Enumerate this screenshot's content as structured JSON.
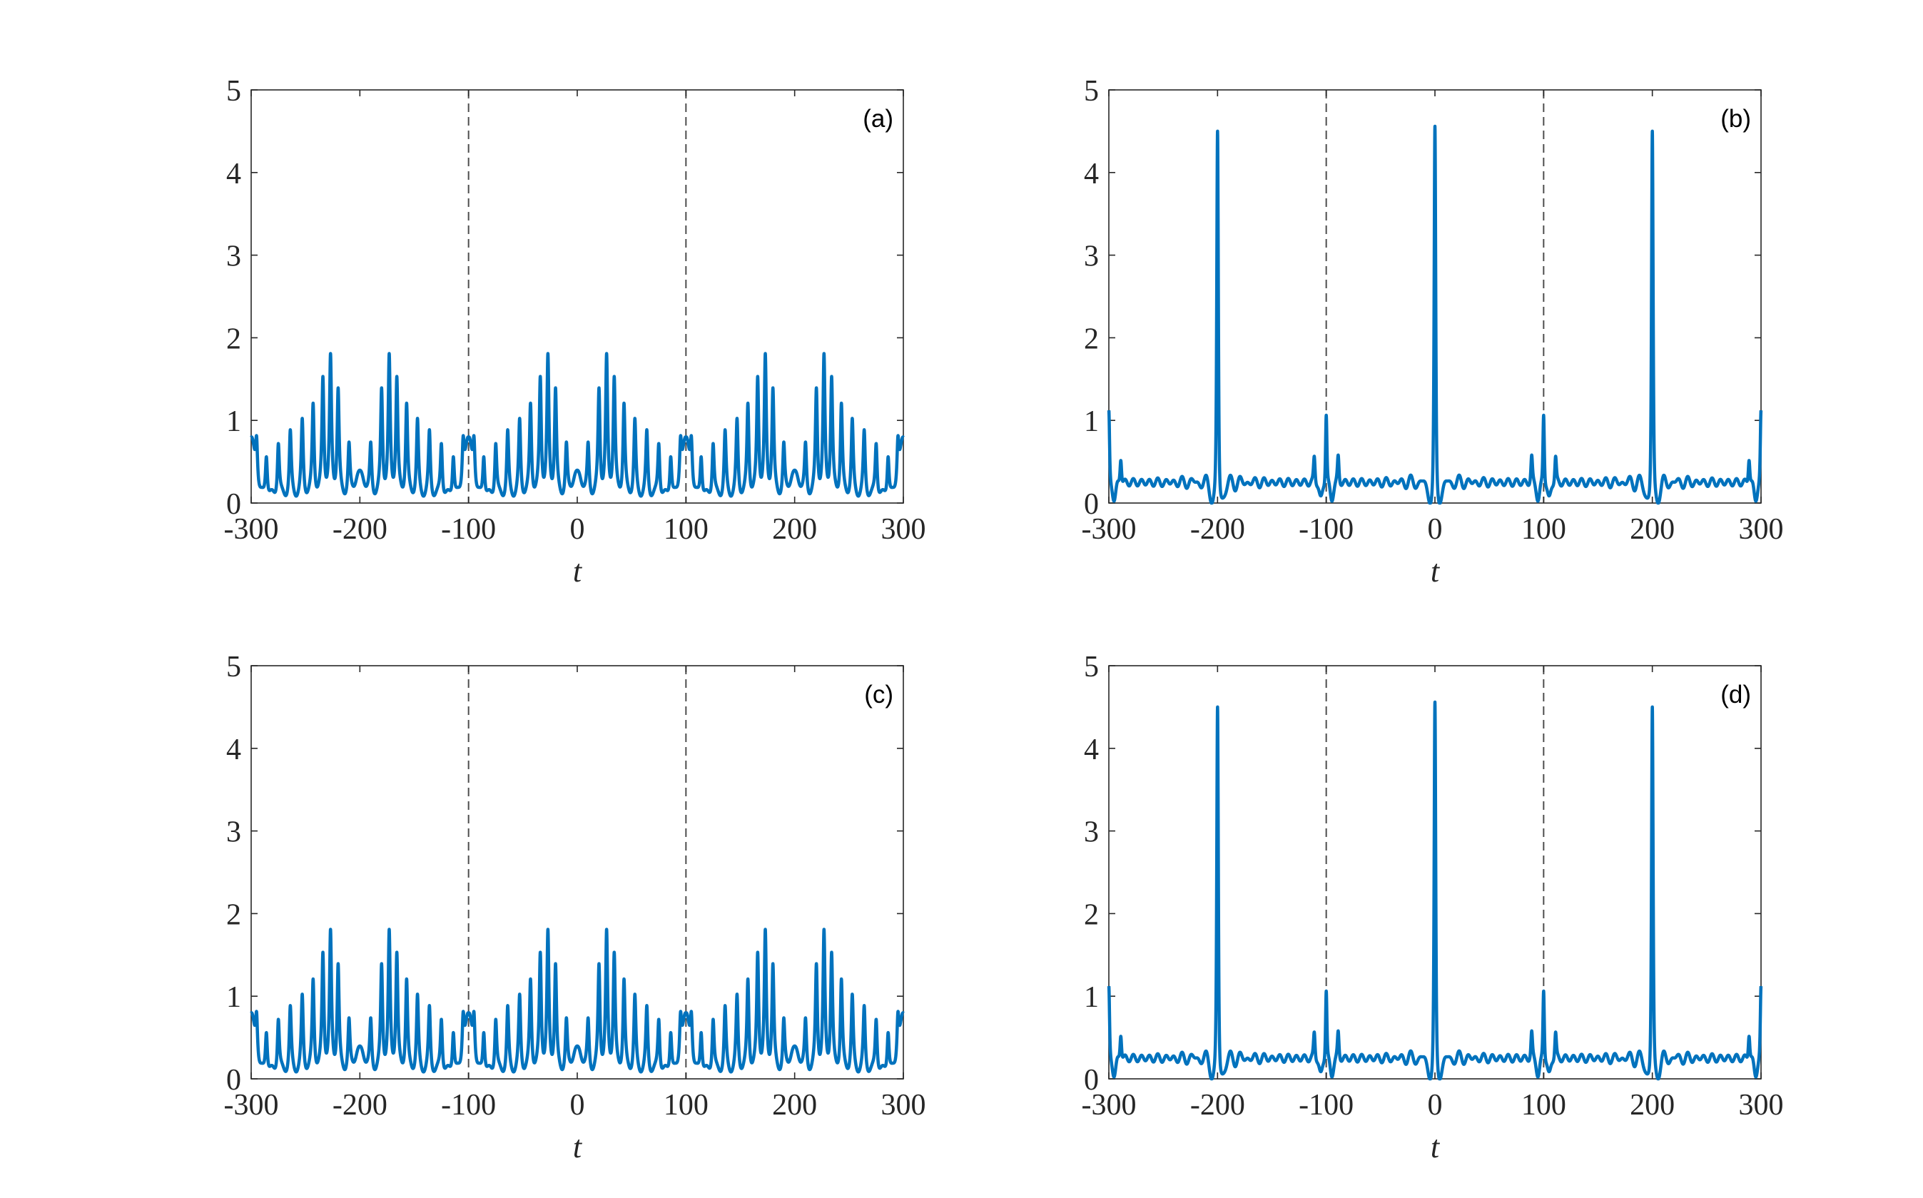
{
  "colors": {
    "series": "#0072BD",
    "axes": "#262626",
    "vline": "#4d4d4d"
  },
  "chart_data": [
    {
      "type": "line",
      "panel_label": "(a)",
      "xlabel": "t",
      "ylabel": "",
      "xlim": [
        -300,
        300
      ],
      "ylim": [
        0,
        5
      ],
      "xticks": [
        "-300",
        "-200",
        "-100",
        "0",
        "100",
        "200",
        "300"
      ],
      "yticks": [
        "0",
        "1",
        "2",
        "3",
        "4",
        "5"
      ],
      "vlines": [
        -100,
        100
      ],
      "series": [
        {
          "model": "periodic_pulse_train",
          "period": 200,
          "baseline": 0.05,
          "peaks": [
            [
              -95,
              0.6
            ],
            [
              -86,
              0.58
            ],
            [
              -75,
              0.72
            ],
            [
              -64,
              0.82
            ],
            [
              -53,
              0.95
            ],
            [
              -43,
              1.15
            ],
            [
              -34,
              1.45
            ],
            [
              -27,
              1.68
            ],
            [
              -20,
              1.32
            ],
            [
              -10,
              0.65
            ],
            [
              10,
              0.65
            ],
            [
              20,
              1.32
            ],
            [
              27,
              1.68
            ],
            [
              34,
              1.45
            ],
            [
              43,
              1.15
            ],
            [
              53,
              0.95
            ],
            [
              64,
              0.82
            ],
            [
              75,
              0.72
            ],
            [
              86,
              0.58
            ],
            [
              95,
              0.6
            ]
          ],
          "humps": [
            [
              -2,
              0.28
            ],
            [
              2,
              0.28
            ],
            [
              -100,
              0.45
            ],
            [
              100,
              0.45
            ]
          ]
        }
      ]
    },
    {
      "type": "line",
      "panel_label": "(b)",
      "xlabel": "t",
      "ylabel": "",
      "xlim": [
        -300,
        300
      ],
      "ylim": [
        0,
        5
      ],
      "xticks": [
        "-300",
        "-200",
        "-100",
        "0",
        "100",
        "200",
        "300"
      ],
      "yticks": [
        "0",
        "1",
        "2",
        "3",
        "4",
        "5"
      ],
      "vlines": [
        -100,
        100
      ],
      "series": [
        {
          "model": "periodic_soliton",
          "period": 200,
          "peak": 4.4,
          "side_peak": 1.08,
          "background": 0.25
        }
      ]
    },
    {
      "type": "line",
      "panel_label": "(c)",
      "xlabel": "t",
      "ylabel": "",
      "xlim": [
        -300,
        300
      ],
      "ylim": [
        0,
        5
      ],
      "xticks": [
        "-300",
        "-200",
        "-100",
        "0",
        "100",
        "200",
        "300"
      ],
      "yticks": [
        "0",
        "1",
        "2",
        "3",
        "4",
        "5"
      ],
      "vlines": [
        -100,
        100
      ],
      "series": [
        {
          "model": "periodic_pulse_train",
          "period": 200,
          "baseline": 0.05,
          "peaks": [
            [
              -95,
              0.6
            ],
            [
              -86,
              0.58
            ],
            [
              -75,
              0.72
            ],
            [
              -64,
              0.82
            ],
            [
              -53,
              0.95
            ],
            [
              -43,
              1.15
            ],
            [
              -34,
              1.45
            ],
            [
              -27,
              1.68
            ],
            [
              -20,
              1.32
            ],
            [
              -10,
              0.65
            ],
            [
              10,
              0.65
            ],
            [
              20,
              1.32
            ],
            [
              27,
              1.68
            ],
            [
              34,
              1.45
            ],
            [
              43,
              1.15
            ],
            [
              53,
              0.95
            ],
            [
              64,
              0.82
            ],
            [
              75,
              0.72
            ],
            [
              86,
              0.58
            ],
            [
              95,
              0.6
            ]
          ],
          "humps": [
            [
              -2,
              0.28
            ],
            [
              2,
              0.28
            ],
            [
              -100,
              0.45
            ],
            [
              100,
              0.45
            ]
          ]
        }
      ]
    },
    {
      "type": "line",
      "panel_label": "(d)",
      "xlabel": "t",
      "ylabel": "",
      "xlim": [
        -300,
        300
      ],
      "ylim": [
        0,
        5
      ],
      "xticks": [
        "-300",
        "-200",
        "-100",
        "0",
        "100",
        "200",
        "300"
      ],
      "yticks": [
        "0",
        "1",
        "2",
        "3",
        "4",
        "5"
      ],
      "vlines": [
        -100,
        100
      ],
      "series": [
        {
          "model": "periodic_soliton",
          "period": 200,
          "peak": 4.4,
          "side_peak": 1.08,
          "background": 0.25
        }
      ]
    }
  ]
}
